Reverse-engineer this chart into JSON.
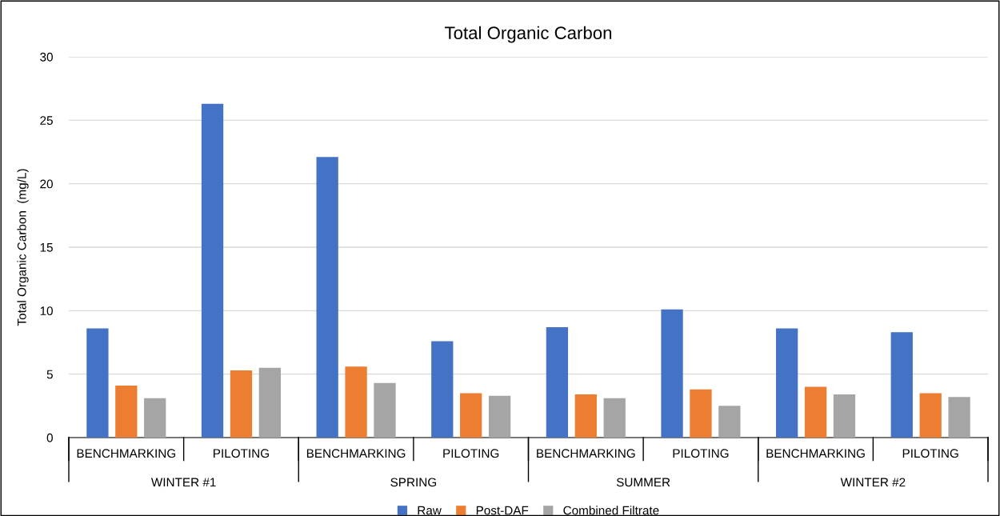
{
  "chart_data": {
    "type": "bar",
    "title": "Total Organic Carbon",
    "ylabel": "Total Organic Carbon  (mg/L)",
    "categories": [
      "BENCHMARKING",
      "PILOTING",
      "BENCHMARKING",
      "PILOTING",
      "BENCHMARKING",
      "PILOTING",
      "BENCHMARKING",
      "PILOTING"
    ],
    "annotations": [
      "WINTER #1",
      "SPRING",
      "SUMMER",
      "WINTER #2"
    ],
    "series": [
      {
        "name": "Raw",
        "color": "#4472c4",
        "values": [
          8.6,
          26.3,
          22.1,
          7.6,
          8.7,
          10.1,
          8.6,
          8.3
        ]
      },
      {
        "name": "Post-DAF",
        "color": "#ed7d31",
        "values": [
          4.1,
          5.3,
          5.6,
          3.5,
          3.4,
          3.8,
          4.0,
          3.5
        ]
      },
      {
        "name": "Combined Filtrate",
        "color": "#a5a5a5",
        "values": [
          3.1,
          5.5,
          4.3,
          3.3,
          3.1,
          2.5,
          3.4,
          3.2
        ]
      }
    ],
    "ylim": [
      0,
      30
    ],
    "yticks": [
      0,
      5,
      10,
      15,
      20,
      25,
      30
    ],
    "grid": "y",
    "legend": "bottom"
  }
}
